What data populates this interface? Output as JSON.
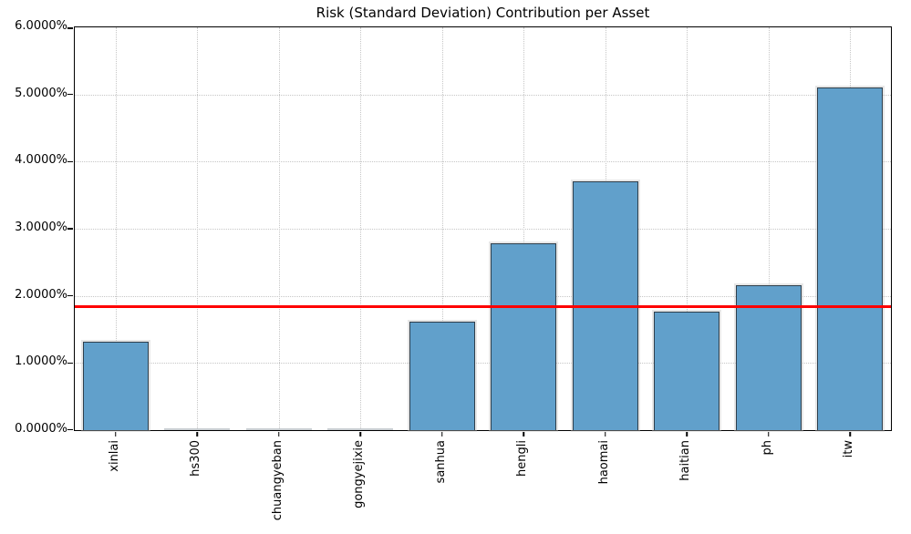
{
  "chart_data": {
    "type": "bar",
    "title": "Risk (Standard Deviation) Contribution per Asset",
    "categories": [
      "xinlai",
      "hs300",
      "chuangyeban",
      "gongyejixie",
      "sanhua",
      "hengli",
      "haomai",
      "haitian",
      "ph",
      "itw"
    ],
    "values": [
      1.32,
      0.0,
      0.0,
      0.0,
      1.61,
      2.78,
      3.7,
      1.76,
      2.16,
      5.1
    ],
    "unit": "%",
    "xlabel": "",
    "ylabel": "",
    "ylim": [
      0,
      6
    ],
    "ytick_step": 1,
    "ytick_labels": [
      "0.0000%",
      "1.0000%",
      "2.0000%",
      "3.0000%",
      "4.0000%",
      "5.0000%",
      "6.0000%"
    ],
    "grid": "dotted",
    "legend": "none",
    "bar_color": "#61a0cb",
    "bar_edge_color": "#2f3f4c",
    "reference_line": {
      "value": 1.846,
      "color": "#ff0000",
      "meaning": "average contribution"
    }
  }
}
